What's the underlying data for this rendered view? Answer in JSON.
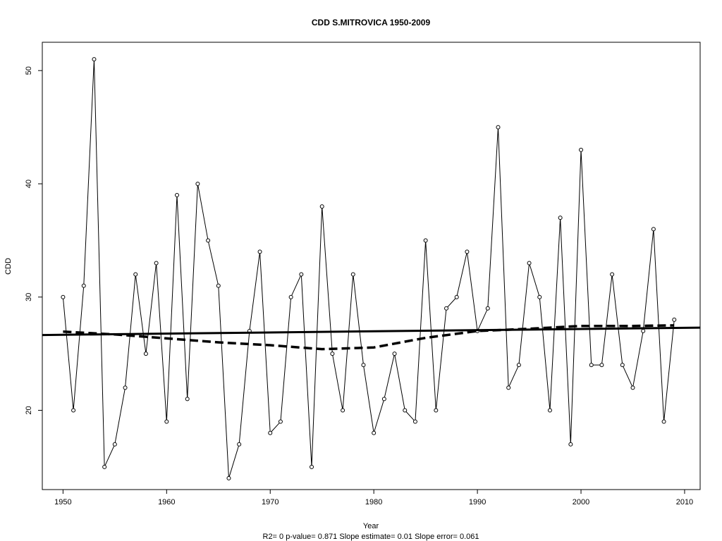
{
  "chart_data": {
    "type": "line",
    "title": "CDD    S.MITROVICA 1950-2009",
    "xlabel": "Year",
    "ylabel": "CDD",
    "xlim": [
      1948,
      2011.5
    ],
    "ylim": [
      13,
      52.5
    ],
    "xticks": [
      1950,
      1960,
      1970,
      1980,
      1990,
      2000,
      2010
    ],
    "yticks": [
      20,
      30,
      40,
      50
    ],
    "grid": false,
    "series": [
      {
        "style": "line-with-circle-markers",
        "x": [
          1950,
          1951,
          1952,
          1953,
          1954,
          1955,
          1956,
          1957,
          1958,
          1959,
          1960,
          1961,
          1962,
          1963,
          1964,
          1965,
          1966,
          1967,
          1968,
          1969,
          1970,
          1971,
          1972,
          1973,
          1974,
          1975,
          1976,
          1977,
          1978,
          1979,
          1980,
          1981,
          1982,
          1983,
          1984,
          1985,
          1986,
          1987,
          1988,
          1989,
          1990,
          1991,
          1992,
          1993,
          1994,
          1995,
          1996,
          1997,
          1998,
          1999,
          2000,
          2001,
          2002,
          2003,
          2004,
          2005,
          2006,
          2007,
          2008,
          2009
        ],
        "y": [
          30,
          20,
          31,
          51,
          15,
          17,
          22,
          32,
          25,
          33,
          19,
          39,
          21,
          40,
          35,
          31,
          14,
          17,
          27,
          34,
          18,
          19,
          30,
          32,
          15,
          38,
          25,
          20,
          32,
          24,
          18,
          21,
          25,
          20,
          19,
          35,
          20,
          29,
          30,
          34,
          27,
          29,
          45,
          22,
          24,
          33,
          30,
          20,
          37,
          17,
          43,
          24,
          24,
          32,
          24,
          22,
          27,
          36,
          19,
          28
        ]
      },
      {
        "style": "solid-trend",
        "x": [
          1948,
          2011.5
        ],
        "y": [
          26.65,
          27.3
        ]
      },
      {
        "style": "dashed-smooth",
        "x": [
          1950,
          1955,
          1960,
          1965,
          1970,
          1975,
          1980,
          1985,
          1990,
          1995,
          2000,
          2005,
          2009
        ],
        "y": [
          26.95,
          26.7,
          26.35,
          26.0,
          25.75,
          25.4,
          25.55,
          26.4,
          27.0,
          27.2,
          27.45,
          27.45,
          27.5
        ]
      }
    ],
    "footer": "R2= 0  p-value= 0.871  Slope estimate= 0.01  Slope error= 0.061"
  }
}
